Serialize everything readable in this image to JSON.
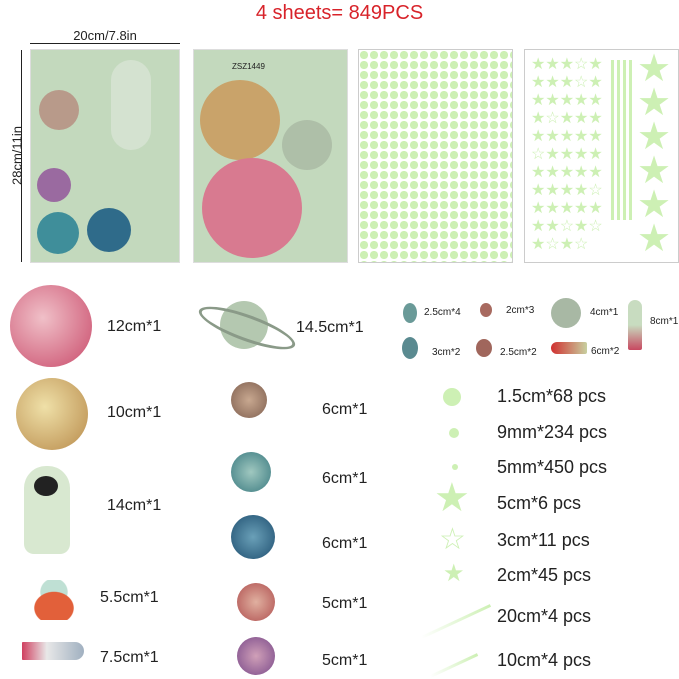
{
  "title": "4 sheets= 849PCS",
  "dimensions": {
    "width": "20cm/7.8in",
    "height": "28cm/11in"
  },
  "sheet_code": "ZSZ1449",
  "left_items": [
    {
      "label": "12cm*1",
      "icon": "pink-planet"
    },
    {
      "label": "10cm*1",
      "icon": "yellow-planet"
    },
    {
      "label": "14cm*1",
      "icon": "astronaut"
    },
    {
      "label": "5.5cm*1",
      "icon": "ufo"
    },
    {
      "label": "7.5cm*1",
      "icon": "space-shuttle"
    }
  ],
  "middle_items": [
    {
      "label": "14.5cm*1",
      "icon": "ringed-planet"
    },
    {
      "label": "6cm*1",
      "icon": "brown-planet"
    },
    {
      "label": "6cm*1",
      "icon": "teal-planet"
    },
    {
      "label": "6cm*1",
      "icon": "blue-planet"
    },
    {
      "label": "5cm*1",
      "icon": "red-planet"
    },
    {
      "label": "5cm*1",
      "icon": "purple-planet"
    }
  ],
  "small_items": [
    {
      "label": "2.5cm*4",
      "icon": "asteroid-blue"
    },
    {
      "label": "2cm*3",
      "icon": "asteroid-red"
    },
    {
      "label": "4cm*1",
      "icon": "moon"
    },
    {
      "label": "8cm*1",
      "icon": "rocket"
    },
    {
      "label": "3cm*2",
      "icon": "asteroid-blue"
    },
    {
      "label": "2.5cm*2",
      "icon": "asteroid-red"
    },
    {
      "label": "6cm*2",
      "icon": "comet"
    }
  ],
  "glow_items": [
    {
      "label": "1.5cm*68 pcs",
      "icon": "large-dot"
    },
    {
      "label": "9mm*234 pcs",
      "icon": "medium-dot"
    },
    {
      "label": "5mm*450 pcs",
      "icon": "small-dot"
    },
    {
      "label": "5cm*6 pcs",
      "icon": "large-star"
    },
    {
      "label": "3cm*11 pcs",
      "icon": "outline-star"
    },
    {
      "label": "2cm*45 pcs",
      "icon": "small-star"
    },
    {
      "label": "20cm*4 pcs",
      "icon": "long-meteor"
    },
    {
      "label": "10cm*4 pcs",
      "icon": "short-meteor"
    }
  ],
  "colors": {
    "title": "#d8232a",
    "sheet": "#c3d9bd",
    "glow": "#cdf0b4"
  }
}
